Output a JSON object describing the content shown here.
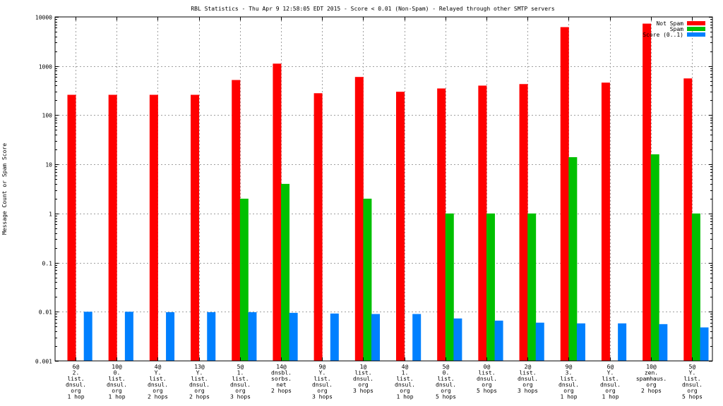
{
  "chart_data": {
    "type": "bar",
    "title": "RBL Statistics - Thu Apr  9 12:58:05 EDT 2015 - Score < 0.01 (Non-Spam) - Relayed through other SMTP servers",
    "xlabel": "",
    "ylabel": "Message Count or Spam Score",
    "yscale": "log",
    "ylim": [
      0.001,
      10000
    ],
    "y_ticks": [
      "0.001",
      "0.01",
      "0.1",
      "1",
      "10",
      "100",
      "1000",
      "10000"
    ],
    "grid": true,
    "legend_position": "top-right",
    "categories": [
      [
        "6@",
        "2.",
        "list.",
        "dnsul.",
        "org",
        "1 hop"
      ],
      [
        "10@",
        "0.",
        "list.",
        "dnsul.",
        "org",
        "1 hop"
      ],
      [
        "4@",
        "Y.",
        "list.",
        "dnsul.",
        "org",
        "2 hops"
      ],
      [
        "13@",
        "Y.",
        "list.",
        "dnsul.",
        "org",
        "2 hops"
      ],
      [
        "5@",
        "1.",
        "list.",
        "dnsul.",
        "org",
        "3 hops"
      ],
      [
        "14@",
        "dnsbl.",
        "sorbs.",
        "net",
        "2 hops"
      ],
      [
        "9@",
        "Y.",
        "list.",
        "dnsul.",
        "org",
        "3 hops"
      ],
      [
        "1@",
        "list.",
        "dnsul.",
        "org",
        "3 hops"
      ],
      [
        "4@",
        "1.",
        "list.",
        "dnsul.",
        "org",
        "1 hop"
      ],
      [
        "5@",
        "0.",
        "list.",
        "dnsul.",
        "org",
        "5 hops"
      ],
      [
        "0@",
        "list.",
        "dnsul.",
        "org",
        "5 hops"
      ],
      [
        "2@",
        "list.",
        "dnsul.",
        "org",
        "3 hops"
      ],
      [
        "9@",
        "3.",
        "list.",
        "dnsul.",
        "org",
        "1 hop"
      ],
      [
        "6@",
        "Y.",
        "list.",
        "dnsul.",
        "org",
        "1 hop"
      ],
      [
        "10@",
        "zen.",
        "spamhaus.",
        "org",
        "2 hops"
      ],
      [
        "5@",
        "Y.",
        "list.",
        "dnsul.",
        "org",
        "5 hops"
      ]
    ],
    "series": [
      {
        "name": "Not Spam",
        "color": "#ff0000",
        "values": [
          260,
          260,
          260,
          260,
          520,
          1120,
          280,
          600,
          300,
          350,
          400,
          430,
          6200,
          460,
          7300,
          560
        ]
      },
      {
        "name": "Spam",
        "color": "#00c000",
        "values": [
          null,
          null,
          null,
          null,
          2,
          4,
          null,
          2,
          null,
          1,
          1,
          1,
          14,
          null,
          16,
          1
        ]
      },
      {
        "name": "Score (0..1)",
        "color": "#0080ff",
        "values": [
          0.01,
          0.01,
          0.0098,
          0.0098,
          0.0098,
          0.0095,
          0.0092,
          0.009,
          0.009,
          0.0073,
          0.0066,
          0.006,
          0.0058,
          0.0058,
          0.0056,
          0.0048
        ]
      }
    ]
  }
}
